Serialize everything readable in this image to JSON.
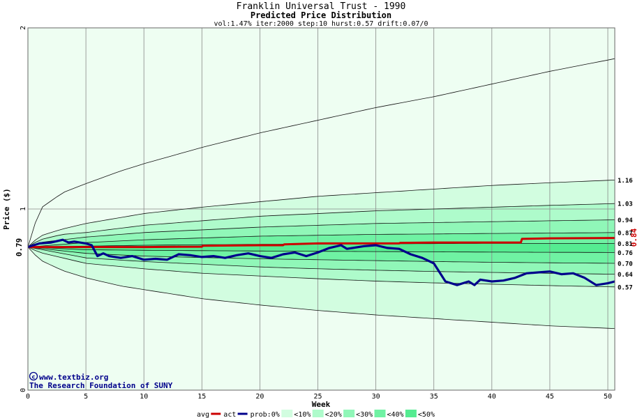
{
  "chart_data": {
    "type": "line",
    "title": "Franklin Universal Trust - 1990",
    "subtitle": "Predicted Price Distribution",
    "params": "vol:1.47% iter:2000 step:10 hurst:0.57 drift:0.07/0",
    "xlabel": "Week",
    "ylabel": "Price ($)",
    "xlim": [
      0,
      50.6
    ],
    "ylim": [
      0,
      2
    ],
    "x_ticks": [
      "0",
      "5",
      "10",
      "15",
      "20",
      "25",
      "30",
      "35",
      "40",
      "45",
      "50"
    ],
    "y_ticks": [
      "0",
      "1",
      "2"
    ],
    "grid": true,
    "start_value_label": "0.79",
    "end_value_label": "0.84",
    "right_labels": [
      "1.16",
      "1.03",
      "0.94",
      "0.87",
      "0.81",
      "0.76",
      "0.70",
      "0.64",
      "0.57"
    ],
    "band_levels": [
      {
        "name": "upper",
        "values": [
          [
            0,
            0.79
          ],
          [
            1,
            1.0
          ],
          [
            3,
            1.09
          ],
          [
            5,
            1.14
          ],
          [
            8,
            1.21
          ],
          [
            10,
            1.25
          ],
          [
            15,
            1.34
          ],
          [
            20,
            1.42
          ],
          [
            25,
            1.49
          ],
          [
            30,
            1.56
          ],
          [
            35,
            1.62
          ],
          [
            40,
            1.69
          ],
          [
            45,
            1.76
          ],
          [
            50.6,
            1.83
          ]
        ]
      },
      {
        "name": "p90",
        "values": [
          [
            0,
            0.79
          ],
          [
            1,
            0.85
          ],
          [
            3,
            0.89
          ],
          [
            5,
            0.92
          ],
          [
            10,
            0.975
          ],
          [
            15,
            1.01
          ],
          [
            20,
            1.04
          ],
          [
            25,
            1.07
          ],
          [
            30,
            1.09
          ],
          [
            35,
            1.11
          ],
          [
            40,
            1.13
          ],
          [
            45,
            1.145
          ],
          [
            50.6,
            1.16
          ]
        ]
      },
      {
        "name": "p80",
        "values": [
          [
            0,
            0.79
          ],
          [
            1,
            0.83
          ],
          [
            3,
            0.86
          ],
          [
            5,
            0.87
          ],
          [
            10,
            0.91
          ],
          [
            15,
            0.935
          ],
          [
            20,
            0.96
          ],
          [
            25,
            0.975
          ],
          [
            30,
            0.99
          ],
          [
            35,
            1.0
          ],
          [
            40,
            1.01
          ],
          [
            45,
            1.02
          ],
          [
            50.6,
            1.03
          ]
        ]
      },
      {
        "name": "p70",
        "values": [
          [
            0,
            0.79
          ],
          [
            1,
            0.815
          ],
          [
            5,
            0.845
          ],
          [
            10,
            0.87
          ],
          [
            15,
            0.885
          ],
          [
            20,
            0.9
          ],
          [
            25,
            0.91
          ],
          [
            30,
            0.92
          ],
          [
            35,
            0.925
          ],
          [
            40,
            0.93
          ],
          [
            45,
            0.935
          ],
          [
            50.6,
            0.94
          ]
        ]
      },
      {
        "name": "p60",
        "values": [
          [
            0,
            0.79
          ],
          [
            5,
            0.815
          ],
          [
            10,
            0.83
          ],
          [
            15,
            0.84
          ],
          [
            20,
            0.85
          ],
          [
            25,
            0.855
          ],
          [
            30,
            0.86
          ],
          [
            35,
            0.862
          ],
          [
            40,
            0.865
          ],
          [
            45,
            0.867
          ],
          [
            50.6,
            0.87
          ]
        ]
      },
      {
        "name": "p50",
        "values": [
          [
            0,
            0.79
          ],
          [
            5,
            0.795
          ],
          [
            10,
            0.8
          ],
          [
            20,
            0.805
          ],
          [
            30,
            0.808
          ],
          [
            40,
            0.81
          ],
          [
            50.6,
            0.81
          ]
        ]
      },
      {
        "name": "p40",
        "values": [
          [
            0,
            0.79
          ],
          [
            5,
            0.775
          ],
          [
            10,
            0.772
          ],
          [
            20,
            0.768
          ],
          [
            30,
            0.765
          ],
          [
            40,
            0.762
          ],
          [
            50.6,
            0.76
          ]
        ]
      },
      {
        "name": "p30",
        "values": [
          [
            0,
            0.79
          ],
          [
            5,
            0.755
          ],
          [
            10,
            0.74
          ],
          [
            15,
            0.732
          ],
          [
            20,
            0.725
          ],
          [
            25,
            0.72
          ],
          [
            30,
            0.715
          ],
          [
            35,
            0.71
          ],
          [
            40,
            0.706
          ],
          [
            45,
            0.703
          ],
          [
            50.6,
            0.7
          ]
        ]
      },
      {
        "name": "p20",
        "values": [
          [
            0,
            0.79
          ],
          [
            5,
            0.73
          ],
          [
            10,
            0.71
          ],
          [
            15,
            0.695
          ],
          [
            20,
            0.68
          ],
          [
            25,
            0.67
          ],
          [
            30,
            0.662
          ],
          [
            35,
            0.655
          ],
          [
            40,
            0.65
          ],
          [
            45,
            0.645
          ],
          [
            50.6,
            0.64
          ]
        ]
      },
      {
        "name": "p10",
        "values": [
          [
            0,
            0.79
          ],
          [
            1,
            0.76
          ],
          [
            5,
            0.7
          ],
          [
            10,
            0.67
          ],
          [
            15,
            0.645
          ],
          [
            20,
            0.63
          ],
          [
            25,
            0.615
          ],
          [
            30,
            0.602
          ],
          [
            35,
            0.592
          ],
          [
            40,
            0.585
          ],
          [
            45,
            0.577
          ],
          [
            50.6,
            0.57
          ]
        ]
      },
      {
        "name": "lower",
        "values": [
          [
            0,
            0.79
          ],
          [
            1,
            0.72
          ],
          [
            3,
            0.66
          ],
          [
            5,
            0.62
          ],
          [
            8,
            0.575
          ],
          [
            10,
            0.555
          ],
          [
            15,
            0.505
          ],
          [
            20,
            0.47
          ],
          [
            25,
            0.44
          ],
          [
            30,
            0.415
          ],
          [
            35,
            0.395
          ],
          [
            40,
            0.375
          ],
          [
            45,
            0.355
          ],
          [
            50.6,
            0.34
          ]
        ]
      }
    ],
    "series": [
      {
        "name": "avg",
        "values": [
          [
            0,
            0.79
          ],
          [
            5,
            0.79
          ],
          [
            10,
            0.79
          ],
          [
            15,
            0.792
          ],
          [
            15.1,
            0.797
          ],
          [
            20,
            0.8
          ],
          [
            22,
            0.8
          ],
          [
            22.1,
            0.805
          ],
          [
            25,
            0.81
          ],
          [
            30,
            0.81
          ],
          [
            32,
            0.81
          ],
          [
            32.1,
            0.813
          ],
          [
            35,
            0.815
          ],
          [
            40,
            0.815
          ],
          [
            42.5,
            0.815
          ],
          [
            42.6,
            0.835
          ],
          [
            45,
            0.838
          ],
          [
            50.6,
            0.84
          ]
        ]
      },
      {
        "name": "act",
        "values": [
          [
            0,
            0.79
          ],
          [
            0.5,
            0.8
          ],
          [
            1,
            0.81
          ],
          [
            2,
            0.815
          ],
          [
            3,
            0.83
          ],
          [
            3.5,
            0.815
          ],
          [
            4,
            0.82
          ],
          [
            5,
            0.81
          ],
          [
            5.5,
            0.8
          ],
          [
            6,
            0.74
          ],
          [
            6.5,
            0.755
          ],
          [
            7,
            0.74
          ],
          [
            8,
            0.73
          ],
          [
            9,
            0.74
          ],
          [
            10,
            0.72
          ],
          [
            11,
            0.725
          ],
          [
            12,
            0.72
          ],
          [
            13,
            0.75
          ],
          [
            14,
            0.745
          ],
          [
            15,
            0.735
          ],
          [
            16,
            0.74
          ],
          [
            17,
            0.73
          ],
          [
            18,
            0.745
          ],
          [
            19,
            0.755
          ],
          [
            20,
            0.74
          ],
          [
            21,
            0.73
          ],
          [
            22,
            0.75
          ],
          [
            23,
            0.76
          ],
          [
            24,
            0.74
          ],
          [
            25,
            0.76
          ],
          [
            26,
            0.785
          ],
          [
            27,
            0.8
          ],
          [
            27.5,
            0.78
          ],
          [
            28,
            0.785
          ],
          [
            29,
            0.795
          ],
          [
            30,
            0.8
          ],
          [
            31,
            0.785
          ],
          [
            32,
            0.78
          ],
          [
            33,
            0.75
          ],
          [
            34,
            0.73
          ],
          [
            35,
            0.7
          ],
          [
            36,
            0.6
          ],
          [
            37,
            0.58
          ],
          [
            38,
            0.6
          ],
          [
            38.5,
            0.58
          ],
          [
            39,
            0.61
          ],
          [
            40,
            0.6
          ],
          [
            41,
            0.605
          ],
          [
            42,
            0.62
          ],
          [
            43,
            0.645
          ],
          [
            44,
            0.65
          ],
          [
            45,
            0.655
          ],
          [
            46,
            0.64
          ],
          [
            47,
            0.645
          ],
          [
            48,
            0.62
          ],
          [
            49,
            0.58
          ],
          [
            50,
            0.59
          ],
          [
            50.6,
            0.6
          ]
        ]
      }
    ],
    "legend": {
      "placement": "bottom-center",
      "items": [
        "avg",
        "act",
        "prob:0%",
        "<10%",
        "<20%",
        "<30%",
        "<40%",
        "<50%"
      ]
    },
    "credit_lines": [
      "www.textbiz.org",
      "The Research Foundation of SUNY"
    ],
    "colors": {
      "avg": "#cc0000",
      "act": "#00008b",
      "band_0": "#eefef2",
      "band_10": "#d2fde0",
      "band_20": "#aefbcb",
      "band_30": "#90f7b8",
      "band_40": "#6ff2a3",
      "band_50": "#55ec91"
    }
  }
}
